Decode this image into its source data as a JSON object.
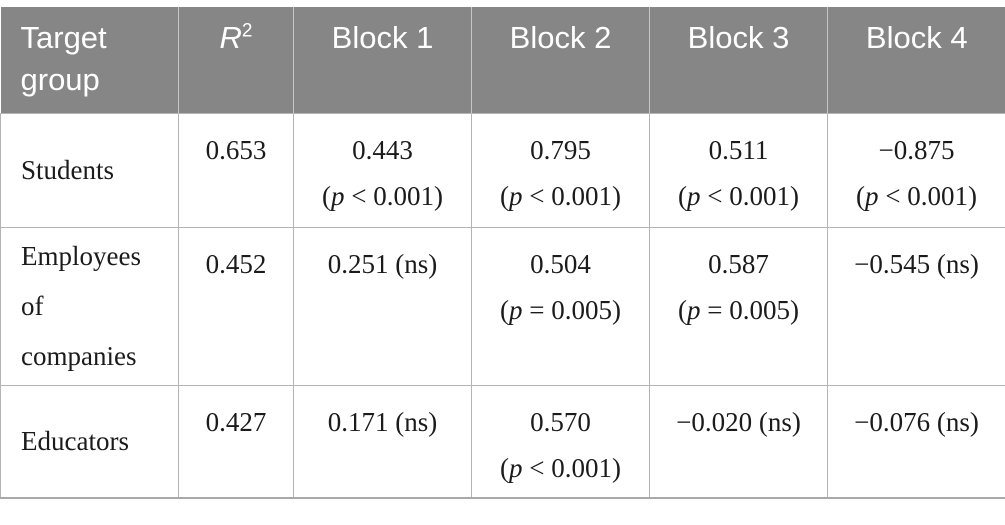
{
  "colors": {
    "header_bg": "#868686",
    "header_text": "#ffffff",
    "header_divider": "#c6c6c6",
    "body_border": "#b4b4b4",
    "bottom_border": "#a9a9a9",
    "body_text": "#1b1b1b",
    "page_bg": "#ffffff"
  },
  "table": {
    "header": [
      {
        "text": "Target group"
      },
      {
        "var": "R",
        "sup": "2"
      },
      {
        "text": "Block 1"
      },
      {
        "text": "Block 2"
      },
      {
        "text": "Block 3"
      },
      {
        "text": "Block 4"
      }
    ],
    "rows": [
      {
        "group": "Students",
        "cells": [
          {
            "value": "0.653"
          },
          {
            "value": "0.443",
            "sig": "(p < 0.001)"
          },
          {
            "value": "0.795",
            "sig": "(p < 0.001)"
          },
          {
            "value": "0.511",
            "sig": "(p < 0.001)"
          },
          {
            "value": "−0.875",
            "sig": "(p < 0.001)"
          }
        ]
      },
      {
        "group": "Employees of companies",
        "cells": [
          {
            "value": "0.452"
          },
          {
            "value": "0.251 (ns)"
          },
          {
            "value": "0.504",
            "sig": "(p = 0.005)"
          },
          {
            "value": "0.587",
            "sig": "(p = 0.005)"
          },
          {
            "value": "−0.545 (ns)"
          }
        ]
      },
      {
        "group": "Educators",
        "cells": [
          {
            "value": "0.427"
          },
          {
            "value": "0.171 (ns)"
          },
          {
            "value": "0.570",
            "sig": "(p < 0.001)"
          },
          {
            "value": "−0.020 (ns)"
          },
          {
            "value": "−0.076 (ns)"
          }
        ]
      }
    ]
  }
}
